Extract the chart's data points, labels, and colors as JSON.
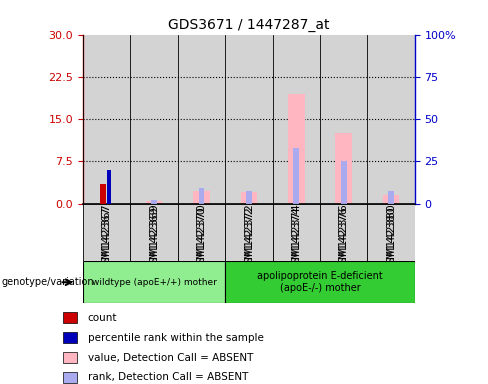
{
  "title": "GDS3671 / 1447287_at",
  "samples": [
    "GSM142367",
    "GSM142369",
    "GSM142370",
    "GSM142372",
    "GSM142374",
    "GSM142376",
    "GSM142380"
  ],
  "count_values": [
    3.5,
    0,
    0,
    0,
    0,
    0,
    0
  ],
  "percentile_values": [
    20.0,
    0,
    0,
    0,
    0,
    0,
    0
  ],
  "value_absent": [
    0,
    0.5,
    2.2,
    2.0,
    19.5,
    12.5,
    1.5
  ],
  "rank_absent_pct": [
    0,
    2.0,
    9.0,
    7.5,
    33.0,
    25.0,
    7.5
  ],
  "ylim_left": [
    0,
    30
  ],
  "ylim_right": [
    0,
    100
  ],
  "left_ticks": [
    0,
    7.5,
    15,
    22.5,
    30
  ],
  "right_ticks": [
    0,
    25,
    50,
    75,
    100
  ],
  "left_tick_color": "#CC0000",
  "right_tick_color": "#0000CC",
  "count_color": "#CC0000",
  "percentile_color": "#0000BB",
  "value_absent_color": "#FFB6C1",
  "rank_absent_color": "#AAAAEE",
  "bg_color": "#D3D3D3",
  "group1_color": "#90EE90",
  "group2_color": "#33CC33",
  "legend_items": [
    "count",
    "percentile rank within the sample",
    "value, Detection Call = ABSENT",
    "rank, Detection Call = ABSENT"
  ],
  "legend_colors": [
    "#CC0000",
    "#0000BB",
    "#FFB6C1",
    "#AAAAEE"
  ]
}
